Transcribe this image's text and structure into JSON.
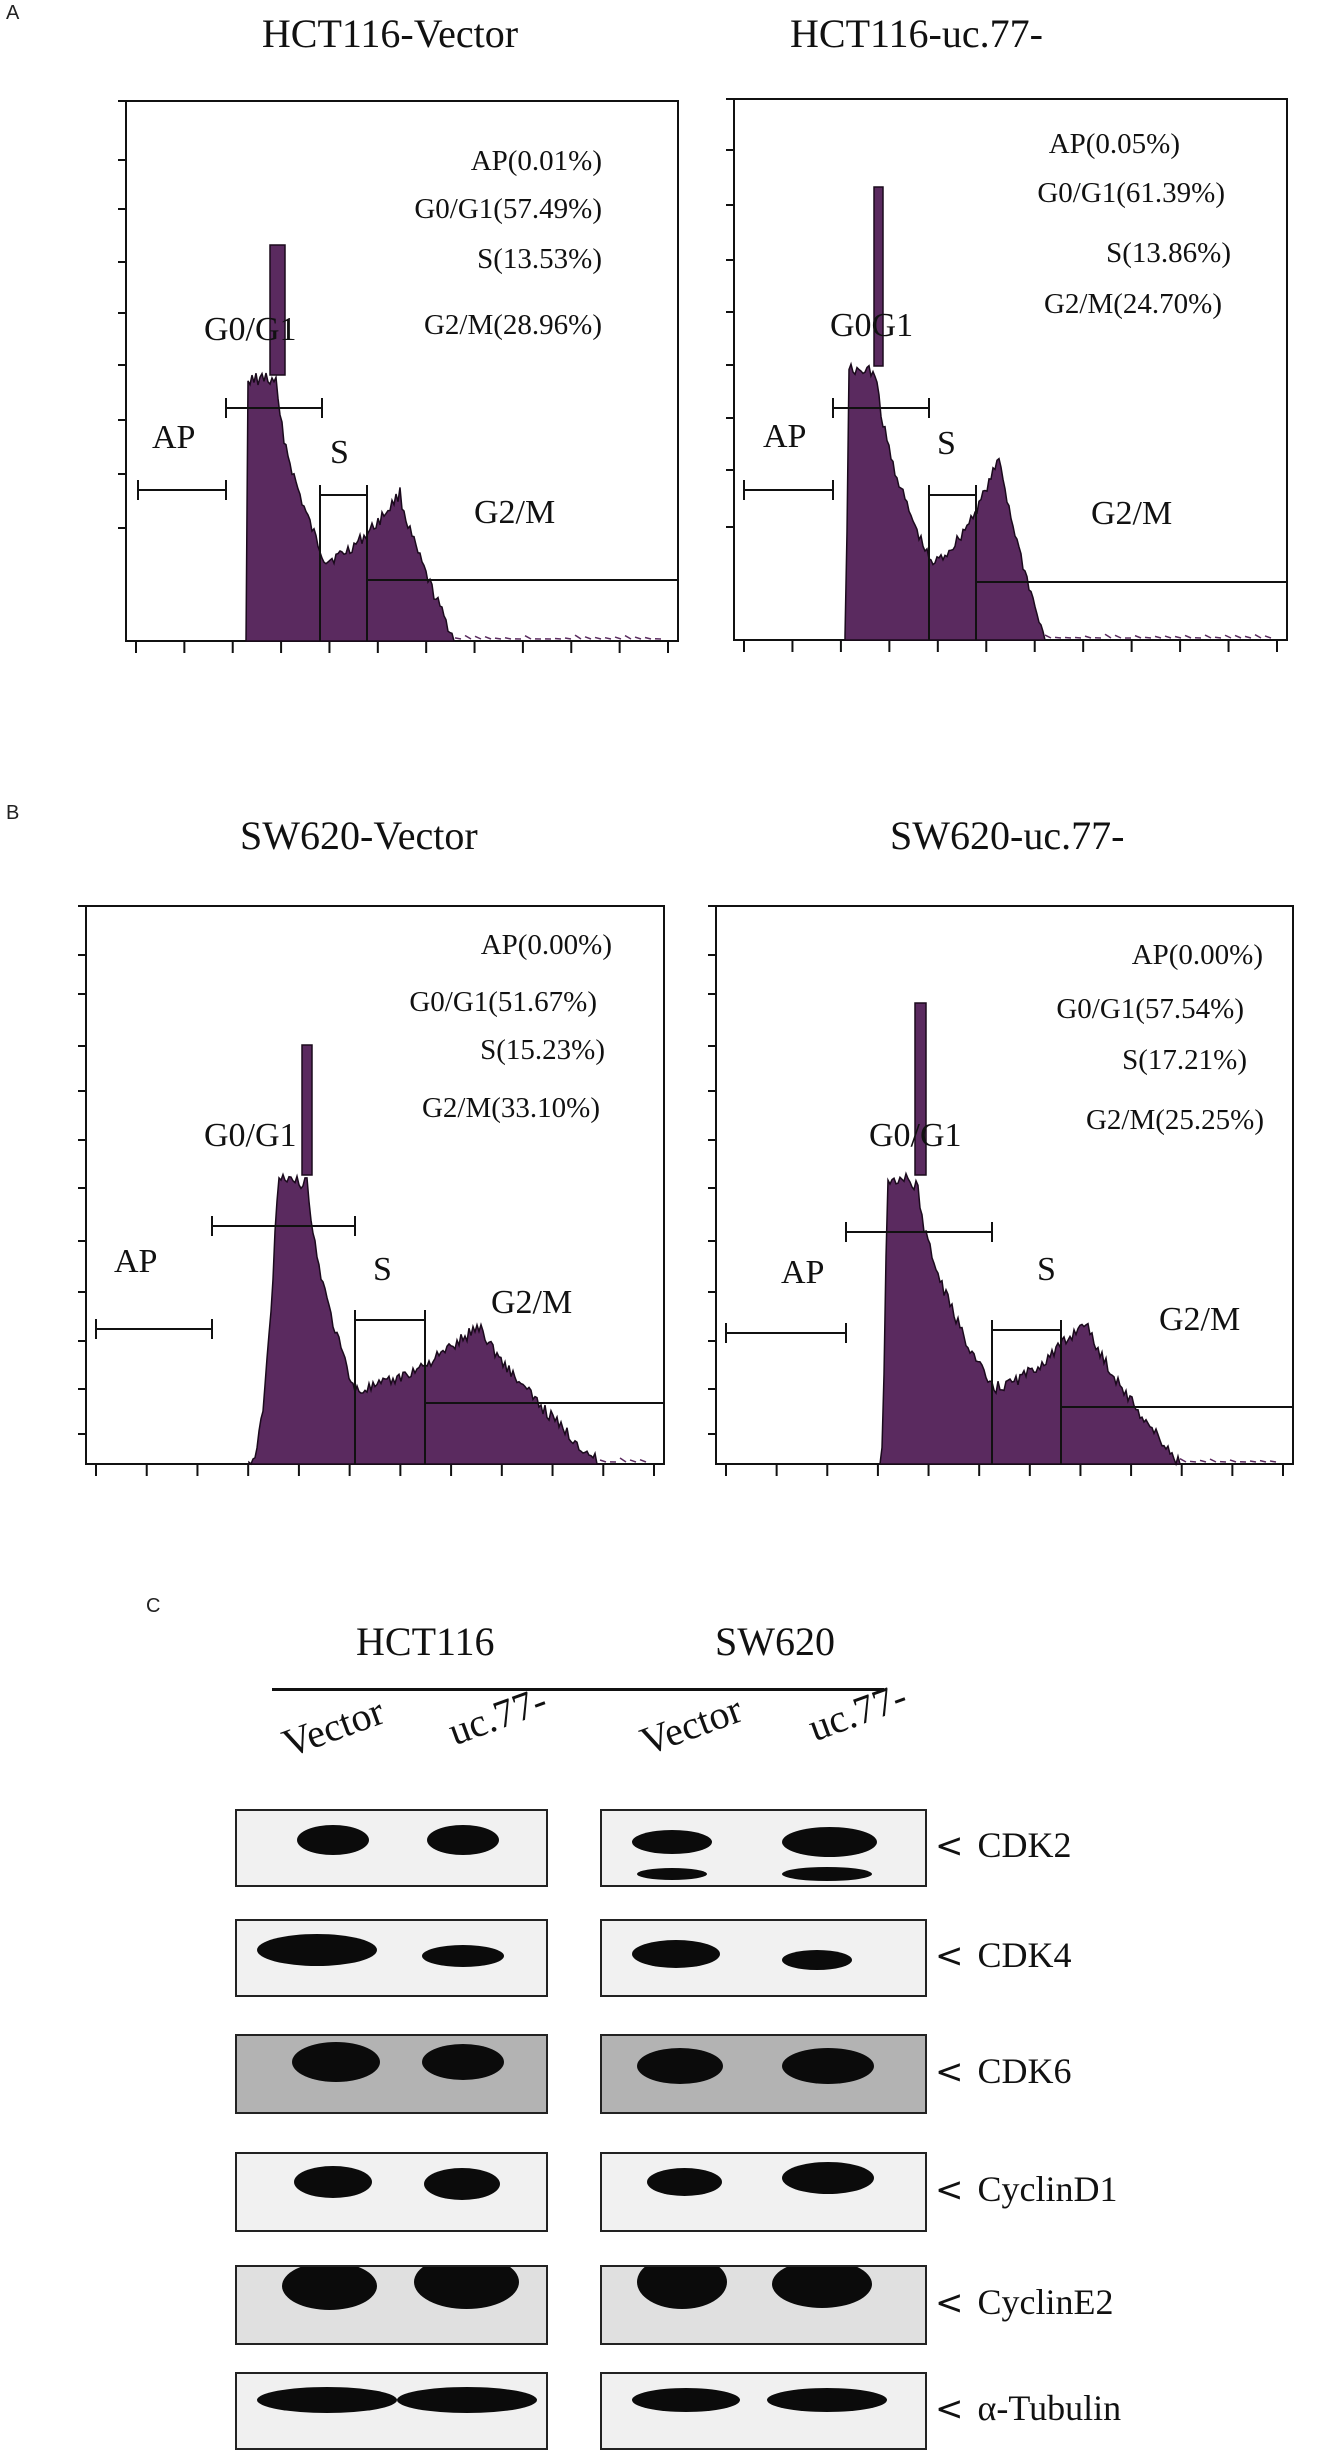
{
  "panels": {
    "a": "A",
    "b": "B",
    "c": "C"
  },
  "plots": [
    {
      "title": "HCT116-Vector",
      "stats": [
        "AP(0.01%)",
        "G0/G1(57.49%)",
        "S(13.53%)",
        "G2/M(28.96%)"
      ],
      "gate_labels": {
        "ap": "AP",
        "g1": "G0/G1",
        "s": "S",
        "g2m": "G2/M"
      }
    },
    {
      "title": "HCT116-uc.77-",
      "stats": [
        "AP(0.05%)",
        "G0/G1(61.39%)",
        "S(13.86%)",
        "G2/M(24.70%)"
      ],
      "gate_labels": {
        "ap": "AP",
        "g1": "G0G1",
        "s": "S",
        "g2m": "G2/M"
      }
    },
    {
      "title": "SW620-Vector",
      "stats": [
        "AP(0.00%)",
        "G0/G1(51.67%)",
        "S(15.23%)",
        "G2/M(33.10%)"
      ],
      "gate_labels": {
        "ap": "AP",
        "g1": "G0/G1",
        "s": "S",
        "g2m": "G2/M"
      }
    },
    {
      "title": "SW620-uc.77-",
      "stats": [
        "AP(0.00%)",
        "G0/G1(57.54%)",
        "S(17.21%)",
        "G2/M(25.25%)"
      ],
      "gate_labels": {
        "ap": "AP",
        "g1": "G0/G1",
        "s": "S",
        "g2m": "G2/M"
      }
    }
  ],
  "western": {
    "groups": [
      {
        "name": "HCT116",
        "lanes": [
          "Vector",
          "uc.77-"
        ]
      },
      {
        "name": "SW620",
        "lanes": [
          "Vector",
          "uc.77-"
        ]
      }
    ],
    "proteins": [
      "CDK2",
      "CDK4",
      "CDK6",
      "CyclinD1",
      "CyclinE2",
      "α-Tubulin"
    ],
    "arrow": "<"
  },
  "colors": {
    "histogram_fill": "#5a2a5f",
    "histogram_edge": "#1a0a1c",
    "band": "#0b0b0b"
  }
}
